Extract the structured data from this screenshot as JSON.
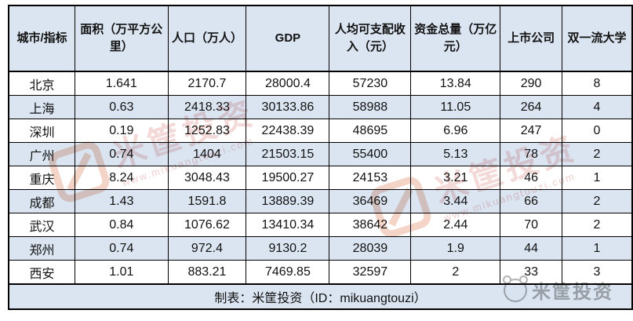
{
  "colors": {
    "row_stripe": "#dbe5f1",
    "table_border": "#000000",
    "watermark_pink": "#db8080",
    "watermark_orange": "#e29474",
    "watermark_gray": "#969696"
  },
  "chart_data": {
    "type": "table",
    "columns": [
      "城市/指标",
      "面积（万平方公里）",
      "人口（万人）",
      "GDP",
      "人均可支配收入（元）",
      "资金总量（万亿元）",
      "上市公司",
      "双一流大学"
    ],
    "rows": [
      {
        "city": "北京",
        "values": [
          "1.641",
          "2170.7",
          "28000.4",
          "57230",
          "13.84",
          "290",
          "8"
        ]
      },
      {
        "city": "上海",
        "values": [
          "0.63",
          "2418.33",
          "30133.86",
          "58988",
          "11.05",
          "264",
          "4"
        ]
      },
      {
        "city": "深圳",
        "values": [
          "0.19",
          "1252.83",
          "22438.39",
          "48695",
          "6.96",
          "247",
          "0"
        ]
      },
      {
        "city": "广州",
        "values": [
          "0.74",
          "1404",
          "21503.15",
          "55400",
          "5.13",
          "78",
          "2"
        ]
      },
      {
        "city": "重庆",
        "values": [
          "8.24",
          "3048.43",
          "19500.27",
          "24153",
          "3.21",
          "46",
          "1"
        ]
      },
      {
        "city": "成都",
        "values": [
          "1.43",
          "1591.8",
          "13889.39",
          "36469",
          "3.44",
          "66",
          "2"
        ]
      },
      {
        "city": "武汉",
        "values": [
          "0.84",
          "1076.62",
          "13410.34",
          "38642",
          "2.44",
          "70",
          "2"
        ]
      },
      {
        "city": "郑州",
        "values": [
          "0.74",
          "972.4",
          "9130.2",
          "28039",
          "1.9",
          "44",
          "1"
        ]
      },
      {
        "city": "西安",
        "values": [
          "1.01",
          "883.21",
          "7469.85",
          "32597",
          "2",
          "33",
          "3"
        ]
      }
    ],
    "footer_note": "制表：米筐投资（ID：mikuangtouzi）"
  },
  "watermark": {
    "brand": "米筐投资",
    "url": "www.mikuangtouzi.com",
    "corner_brand": "米筐投资"
  }
}
